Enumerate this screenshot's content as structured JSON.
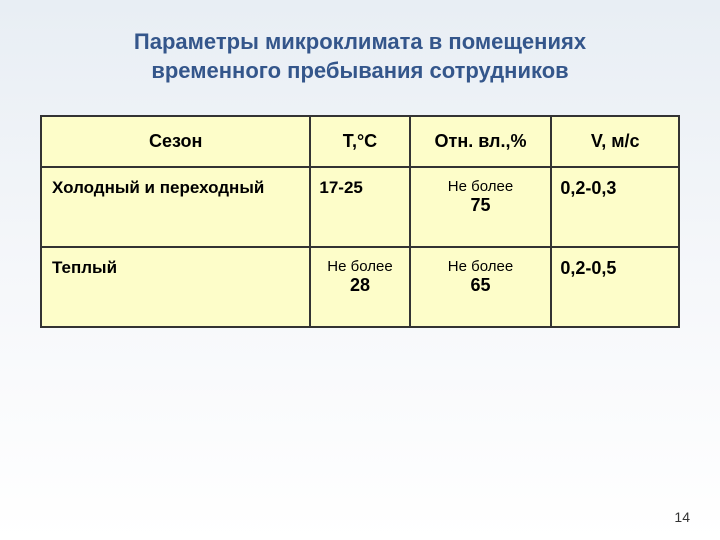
{
  "title": {
    "line1": "Параметры микроклимата в помещениях",
    "line2": "временного пребывания сотрудников"
  },
  "table": {
    "headers": {
      "season": "Сезон",
      "temperature": "Т,°С",
      "humidity": "Отн. вл.,%",
      "velocity": "V, м/c"
    },
    "rows": [
      {
        "season": "Холодный и переходный",
        "temperature": "17-25",
        "humidity_prefix": "Не более",
        "humidity_value": "75",
        "velocity": "0,2-0,3"
      },
      {
        "season": "Теплый",
        "temperature_prefix": "Не более",
        "temperature_value": "28",
        "humidity_prefix": "Не более",
        "humidity_value": "65",
        "velocity": "0,2-0,5"
      }
    ]
  },
  "pageNumber": "14",
  "colors": {
    "title_color": "#34568b",
    "table_bg": "#fdfdc9",
    "border_color": "#333333",
    "text_color": "#000000",
    "bg_gradient_top": "#e8eef4",
    "bg_gradient_bottom": "#ffffff"
  },
  "typography": {
    "title_fontsize": 22,
    "header_fontsize": 18,
    "cell_fontsize": 17,
    "small_fontsize": 15,
    "page_fontsize": 14
  }
}
